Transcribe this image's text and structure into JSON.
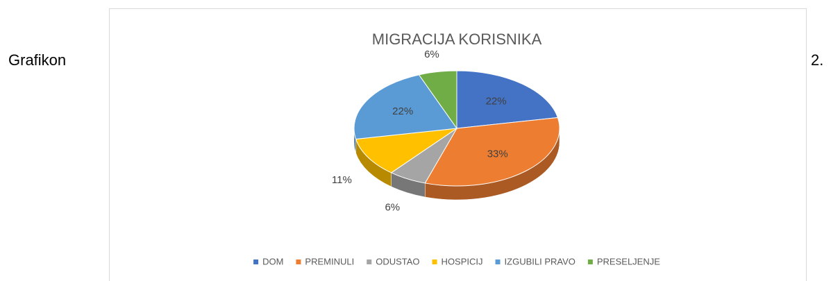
{
  "caption_left": "Grafikon",
  "caption_right": "2.",
  "chart_data": {
    "type": "pie",
    "title": "MIGRACIJA KORISNIKA",
    "categories": [
      "DOM",
      "PREMINULI",
      "ODUSTAO",
      "HOSPICIJ",
      "IZGUBILI PRAVO",
      "PRESELJENJE"
    ],
    "values": [
      22,
      33,
      6,
      11,
      22,
      6
    ],
    "value_labels": [
      "22%",
      "33%",
      "6%",
      "11%",
      "22%",
      "6%"
    ],
    "colors": [
      "#4472c4",
      "#ed7d31",
      "#a5a5a5",
      "#ffc000",
      "#5b9bd5",
      "#70ad47"
    ],
    "legend": "bottom"
  }
}
